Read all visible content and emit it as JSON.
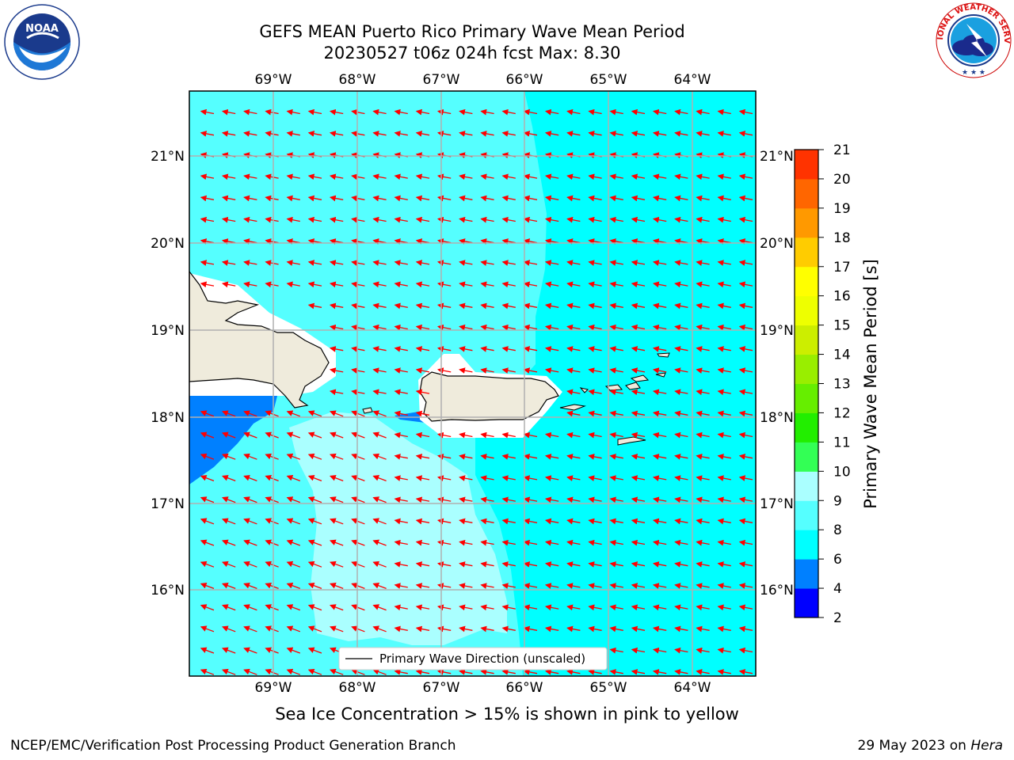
{
  "header": {
    "title_line1": "GEFS MEAN Puerto Rico Primary Wave Mean Period",
    "title_line2": "20230527 t06z 024h fcst   Max: 8.30"
  },
  "logos": {
    "left": {
      "name": "noaa-logo",
      "text": "NOAA",
      "ring_text": "NATIONAL OCEANIC AND ATMOSPHERIC ADMINISTRATION · U.S. DEPARTMENT OF COMMERCE"
    },
    "right": {
      "name": "nws-logo",
      "ring_text": "NATIONAL WEATHER SERVICE"
    }
  },
  "map": {
    "lon_labels": [
      "69°W",
      "68°W",
      "67°W",
      "66°W",
      "65°W",
      "64°W"
    ],
    "lat_labels": [
      "21°N",
      "20°N",
      "19°N",
      "18°N",
      "17°N",
      "16°N"
    ],
    "legend_label": "Primary Wave Direction (unscaled)",
    "colors": {
      "ocean_6_8": "#00ffff",
      "ocean_8_9": "#55ffff",
      "ocean_9_10": "#aaffff",
      "ocean_4_6": "#0080ff",
      "land": "#efebdc",
      "vector": "#ff0000",
      "grid": "#b0b0b0"
    },
    "wave_direction": "westward"
  },
  "colorbar": {
    "label": "Primary Wave Mean Period [s]",
    "ticks": [
      "2",
      "4",
      "6",
      "8",
      "9",
      "10",
      "11",
      "12",
      "13",
      "14",
      "15",
      "16",
      "17",
      "18",
      "19",
      "20",
      "21"
    ],
    "colors": [
      "#0000ff",
      "#0080ff",
      "#00ffff",
      "#55ffff",
      "#aaffff",
      "#33ff55",
      "#22ee00",
      "#66ee00",
      "#99ee00",
      "#ccee00",
      "#eeff00",
      "#ffff00",
      "#ffcc00",
      "#ff9900",
      "#ff6600",
      "#ff3300",
      "#ff0000"
    ]
  },
  "caption": "Sea Ice Concentration > 15% is shown in pink to yellow",
  "footer": {
    "left": "NCEP/EMC/Verification Post Processing Product Generation Branch",
    "date": "29 May 2023 on ",
    "machine": "Hera"
  }
}
